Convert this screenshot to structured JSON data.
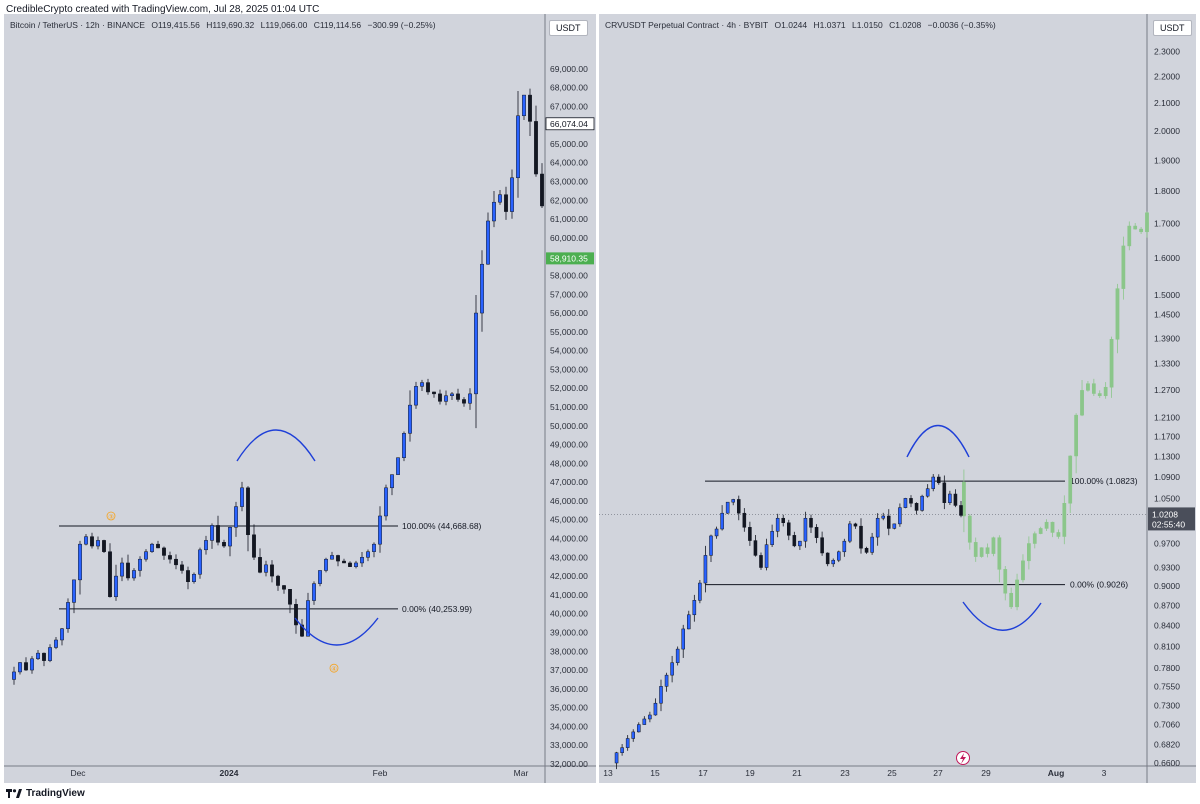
{
  "header": {
    "attribution": "CredibleCrypto created with TradingView.com, Jul 28, 2025 01:04 UTC"
  },
  "footer": {
    "brand": "TradingView",
    "logo_icon": "tradingview-logo-icon"
  },
  "colors": {
    "panel_bg": "#d1d4dc",
    "candle_up": "#2962ff",
    "candle_down": "#131722",
    "projection": "#8bc68a",
    "arc": "#1e3fd8",
    "badge_green": "#4caf50",
    "marker_orange": "#f7a21b"
  },
  "chart_data": [
    {
      "type": "candlestick",
      "title": "Bitcoin / TetherUS · 12h · BINANCE",
      "ohlc": {
        "open": "O119,415.56",
        "high": "H119,690.32",
        "low": "L119,066.00",
        "close": "C119,114.56",
        "change": "−300.99 (−0.25%)"
      },
      "currency_button": "USDT",
      "ylim": [
        32000,
        70000
      ],
      "yticks": [
        "69,000.00",
        "68,000.00",
        "67,000.00",
        "66,000.00",
        "65,000.00",
        "64,000.00",
        "63,000.00",
        "62,000.00",
        "61,000.00",
        "60,000.00",
        "59,000.00",
        "58,000.00",
        "57,000.00",
        "56,000.00",
        "55,000.00",
        "54,000.00",
        "53,000.00",
        "52,000.00",
        "51,000.00",
        "50,000.00",
        "49,000.00",
        "48,000.00",
        "47,000.00",
        "46,000.00",
        "45,000.00",
        "44,000.00",
        "43,000.00",
        "42,000.00",
        "41,000.00",
        "40,000.00",
        "39,000.00",
        "38,000.00",
        "37,000.00",
        "36,000.00",
        "35,000.00",
        "34,000.00",
        "33,000.00",
        "32,000.00"
      ],
      "xticks": [
        "Dec",
        "2024",
        "Feb",
        "Mar"
      ],
      "price_badges": [
        {
          "label": "66,074.04",
          "value": 66074.04,
          "style": "outline"
        },
        {
          "label": "58,910.35",
          "value": 58910.35,
          "style": "green"
        }
      ],
      "levels": [
        {
          "label": "100.00% (44,668.68)",
          "value": 44668.68
        },
        {
          "label": "0.00% (40,253.99)",
          "value": 40253.99
        }
      ],
      "markers": [
        "③",
        "④"
      ],
      "price_path": [
        36500,
        36900,
        37400,
        37000,
        37600,
        37900,
        37500,
        38200,
        38600,
        39200,
        40600,
        41800,
        43700,
        44100,
        43600,
        43900,
        43300,
        40900,
        42000,
        42700,
        41900,
        42300,
        42900,
        43300,
        43700,
        43500,
        43100,
        42900,
        42600,
        42300,
        41700,
        42100,
        43400,
        43900,
        44700,
        43800,
        43600,
        44600,
        45700,
        46700,
        44200,
        43000,
        42200,
        42600,
        42000,
        41500,
        41300,
        40500,
        39400,
        38800,
        40700,
        41600,
        42300,
        42900,
        43100,
        42800,
        42700,
        42500,
        42700,
        43000,
        43300,
        43700,
        45200,
        46700,
        47400,
        48300,
        49600,
        51100,
        52100,
        52300,
        51800,
        51700,
        51300,
        51600,
        51700,
        51400,
        51200,
        51700,
        56000,
        58600,
        60900,
        61900,
        62300,
        61400,
        63200,
        66500,
        67600,
        66200,
        63400,
        61700
      ]
    },
    {
      "type": "candlestick",
      "title": "CRVUSDT Perpetual Contract · 4h · BYBIT",
      "ohlc": {
        "open": "O1.0244",
        "high": "H1.0371",
        "low": "L1.0150",
        "close": "C1.0208",
        "change": "−0.0036 (−0.35%)"
      },
      "currency_button": "USDT",
      "ylim": [
        0.66,
        2.33
      ],
      "scale": "log",
      "yticks": [
        "2.3000",
        "2.2000",
        "2.1000",
        "2.0000",
        "1.9000",
        "1.8000",
        "1.7000",
        "1.6000",
        "1.5000",
        "1.4500",
        "1.3900",
        "1.3300",
        "1.2700",
        "1.2100",
        "1.1700",
        "1.1300",
        "1.0900",
        "1.0500",
        "1.0100",
        "0.9700",
        "0.9300",
        "0.9000",
        "0.8700",
        "0.8400",
        "0.8100",
        "0.7800",
        "0.7550",
        "0.7300",
        "0.7060",
        "0.6820",
        "0.6600"
      ],
      "xticks": [
        "13",
        "15",
        "17",
        "19",
        "21",
        "23",
        "25",
        "27",
        "29",
        "Aug",
        "3"
      ],
      "price_badge": {
        "price": "1.0208",
        "countdown": "02:55:40",
        "value": 1.0208
      },
      "levels": [
        {
          "label": "100.00% (1.0823)",
          "value": 1.0823
        },
        {
          "label": "0.00% (0.9026)",
          "value": 0.9026
        }
      ],
      "price_path": [
        0.66,
        0.672,
        0.678,
        0.689,
        0.697,
        0.706,
        0.713,
        0.718,
        0.733,
        0.755,
        0.77,
        0.787,
        0.806,
        0.835,
        0.856,
        0.878,
        0.905,
        0.95,
        0.983,
        0.995,
        1.023,
        1.043,
        1.048,
        1.023,
        0.998,
        0.975,
        0.95,
        0.93,
        0.968,
        0.991,
        1.014,
        1.006,
        0.984,
        0.966,
        0.974,
        1.014,
        0.998,
        0.98,
        0.954,
        0.936,
        0.942,
        0.956,
        0.974,
        1.004,
        1.0,
        0.962,
        0.955,
        0.981,
        1.014,
        1.018,
        0.996,
        1.004,
        1.033,
        1.05,
        1.041,
        1.028,
        1.054,
        1.068,
        1.09,
        1.079,
        1.042,
        1.058,
        1.037,
        1.019
      ],
      "projection_path": [
        1.08,
        1.018,
        0.972,
        0.948,
        0.963,
        0.953,
        0.98,
        0.927,
        0.889,
        0.868,
        0.91,
        0.941,
        0.97,
        0.987,
        0.996,
        1.007,
        0.989,
        0.982,
        1.041,
        1.131,
        1.215,
        1.269,
        1.284,
        1.262,
        1.257,
        1.276,
        1.388,
        1.517,
        1.635,
        1.693,
        1.684,
        1.676,
        1.733
      ]
    }
  ]
}
